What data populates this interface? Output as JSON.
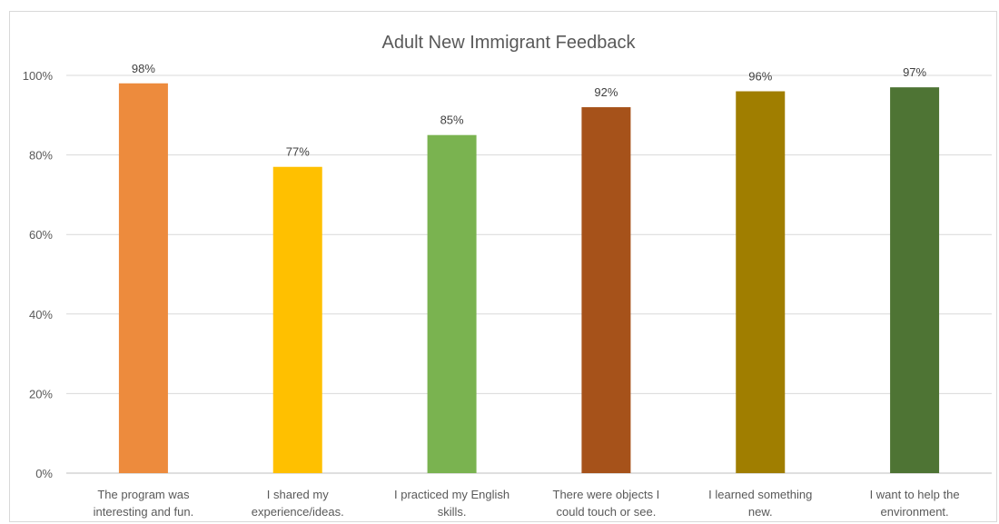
{
  "chart_data": {
    "type": "bar",
    "title": "Adult New Immigrant Feedback",
    "categories": [
      [
        "The program was",
        "interesting and fun."
      ],
      [
        "I shared my",
        "experience/ideas."
      ],
      [
        "I practiced my English",
        "skills."
      ],
      [
        "There were objects I",
        "could touch or see."
      ],
      [
        "I learned something",
        "new."
      ],
      [
        "I want to help the",
        "environment."
      ]
    ],
    "values": [
      98,
      77,
      85,
      92,
      96,
      97
    ],
    "data_labels": [
      "98%",
      "77%",
      "85%",
      "92%",
      "96%",
      "97%"
    ],
    "bar_colors": [
      "#ED8B3D",
      "#FFC000",
      "#7AB350",
      "#A6521A",
      "#A07E00",
      "#4E7434"
    ],
    "ylim": [
      0,
      100
    ],
    "yticks": [
      0,
      20,
      40,
      60,
      80,
      100
    ],
    "ytick_labels": [
      "0%",
      "20%",
      "40%",
      "60%",
      "80%",
      "100%"
    ],
    "grid": true,
    "legend": "none"
  }
}
